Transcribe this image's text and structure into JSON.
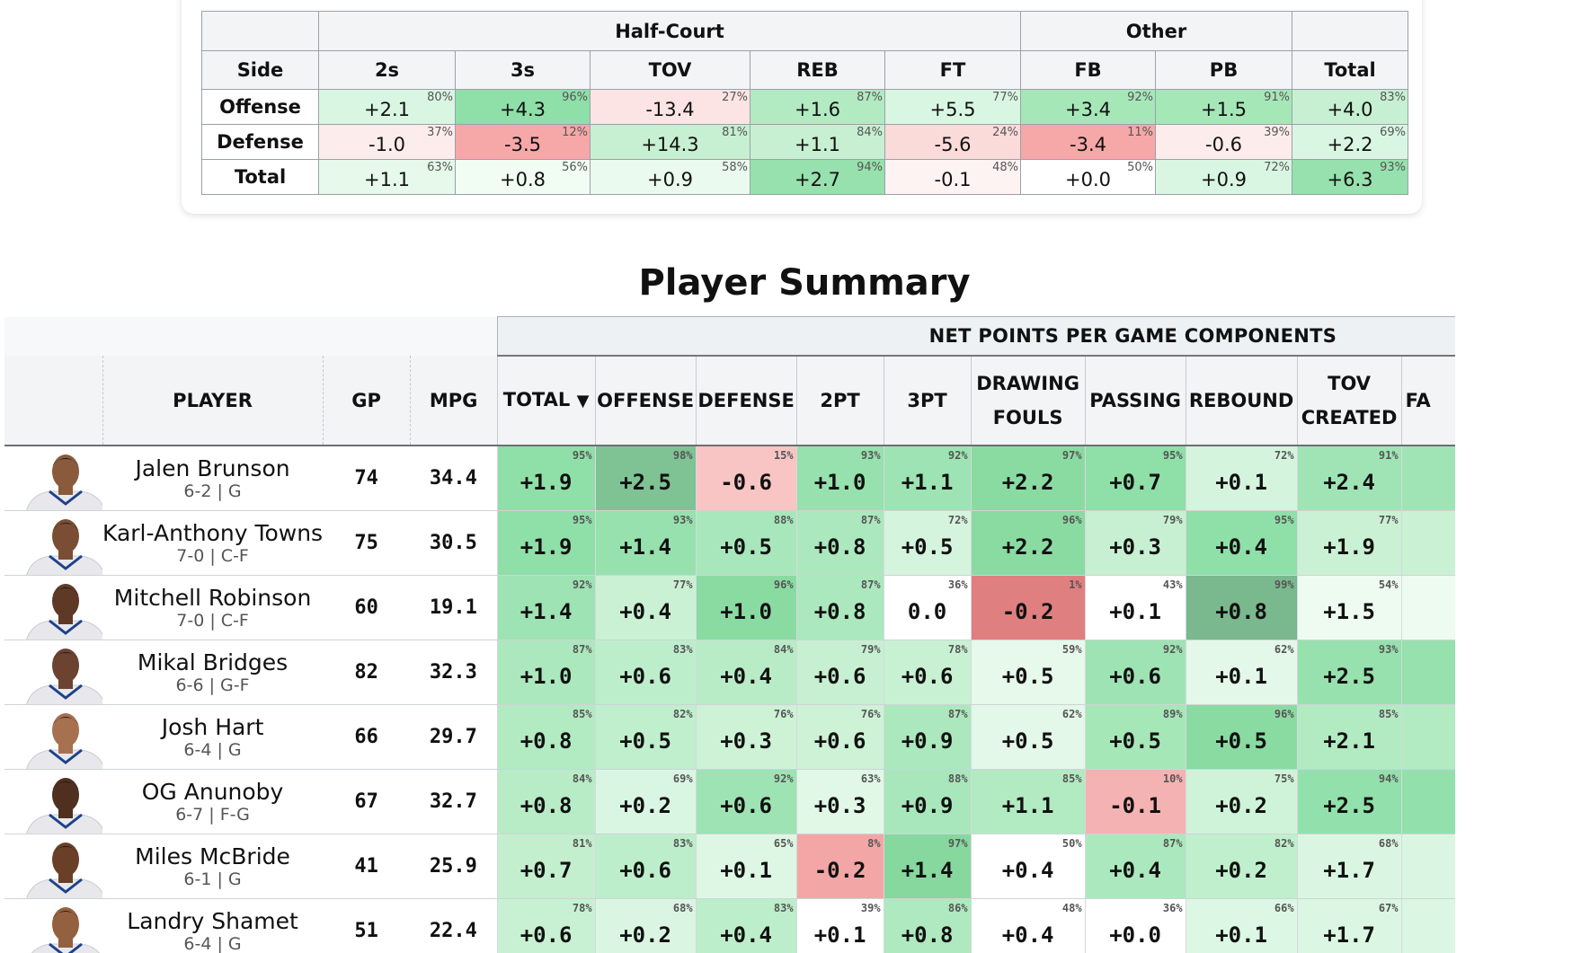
{
  "team_components": {
    "group_headers": [
      "Half-Court",
      "Other"
    ],
    "columns": [
      "Side",
      "2s",
      "3s",
      "TOV",
      "REB",
      "FT",
      "FB",
      "PB",
      "Total"
    ],
    "rows": [
      {
        "side": "Offense",
        "cells": [
          {
            "v": "+2.1",
            "p": "80%",
            "c": "#d9f6e2"
          },
          {
            "v": "+4.3",
            "p": "96%",
            "c": "#8fdfa8"
          },
          {
            "v": "-13.4",
            "p": "27%",
            "c": "#fde4e4"
          },
          {
            "v": "+1.6",
            "p": "87%",
            "c": "#b2eac2"
          },
          {
            "v": "+5.5",
            "p": "77%",
            "c": "#d9f6e2"
          },
          {
            "v": "+3.4",
            "p": "92%",
            "c": "#a6e7b8"
          },
          {
            "v": "+1.5",
            "p": "91%",
            "c": "#a6e7b8"
          },
          {
            "v": "+4.0",
            "p": "83%",
            "c": "#c6f0d1"
          }
        ]
      },
      {
        "side": "Defense",
        "cells": [
          {
            "v": "-1.0",
            "p": "37%",
            "c": "#fdecec"
          },
          {
            "v": "-3.5",
            "p": "12%",
            "c": "#f6a8a8"
          },
          {
            "v": "+14.3",
            "p": "81%",
            "c": "#c6f0d1"
          },
          {
            "v": "+1.1",
            "p": "84%",
            "c": "#c6f0d1"
          },
          {
            "v": "-5.6",
            "p": "24%",
            "c": "#fbdada"
          },
          {
            "v": "-3.4",
            "p": "11%",
            "c": "#f6a8a8"
          },
          {
            "v": "-0.6",
            "p": "39%",
            "c": "#fdecec"
          },
          {
            "v": "+2.2",
            "p": "69%",
            "c": "#d9f6e2"
          }
        ]
      },
      {
        "side": "Total",
        "cells": [
          {
            "v": "+1.1",
            "p": "63%",
            "c": "#e6f9ea"
          },
          {
            "v": "+0.8",
            "p": "56%",
            "c": "#f1fcf3"
          },
          {
            "v": "+0.9",
            "p": "58%",
            "c": "#eafaee"
          },
          {
            "v": "+2.7",
            "p": "94%",
            "c": "#96e1ad"
          },
          {
            "v": "-0.1",
            "p": "48%",
            "c": "#fdf3f3"
          },
          {
            "v": "+0.0",
            "p": "50%",
            "c": "#ffffff"
          },
          {
            "v": "+0.9",
            "p": "72%",
            "c": "#d9f6e2"
          },
          {
            "v": "+6.3",
            "p": "93%",
            "c": "#96e1ad"
          }
        ]
      }
    ]
  },
  "player_summary": {
    "title": "Player Summary",
    "group_header": "NET POINTS PER GAME COMPONENTS",
    "columns": {
      "player": "PLAYER",
      "gp": "GP",
      "mpg": "MPG",
      "total": "TOTAL",
      "sort_icon": "▼",
      "offense": "OFFENSE",
      "defense": "DEFENSE",
      "twopt": "2PT",
      "threept": "3PT",
      "drawing_fouls_1": "DRAWING",
      "drawing_fouls_2": "FOULS",
      "passing": "PASSING",
      "rebound": "REBOUND",
      "tov_created_1": "TOV",
      "tov_created_2": "CREATED",
      "partial": "FA"
    },
    "players": [
      {
        "name": "Jalen Brunson",
        "meta": "6-2 | G",
        "gp": "74",
        "mpg": "34.4",
        "skin": "#8a5a3c",
        "stats": [
          {
            "v": "+1.9",
            "p": "95%",
            "c": "#8fdfa8"
          },
          {
            "v": "+2.5",
            "p": "98%",
            "c": "#7fc294"
          },
          {
            "v": "-0.6",
            "p": "15%",
            "c": "#f8c4c4"
          },
          {
            "v": "+1.0",
            "p": "93%",
            "c": "#96e1ad"
          },
          {
            "v": "+1.1",
            "p": "92%",
            "c": "#9ee3b3"
          },
          {
            "v": "+2.2",
            "p": "97%",
            "c": "#8adba2"
          },
          {
            "v": "+0.7",
            "p": "95%",
            "c": "#8fdfa8"
          },
          {
            "v": "+0.1",
            "p": "72%",
            "c": "#d5f4dd"
          },
          {
            "v": "+2.4",
            "p": "91%",
            "c": "#a0e4b5"
          }
        ]
      },
      {
        "name": "Karl-Anthony Towns",
        "meta": "7-0 | C-F",
        "gp": "75",
        "mpg": "30.5",
        "skin": "#7a4e35",
        "stats": [
          {
            "v": "+1.9",
            "p": "95%",
            "c": "#8fdfa8"
          },
          {
            "v": "+1.4",
            "p": "93%",
            "c": "#96e1ad"
          },
          {
            "v": "+0.5",
            "p": "88%",
            "c": "#a8e7bb"
          },
          {
            "v": "+0.8",
            "p": "87%",
            "c": "#abe8bd"
          },
          {
            "v": "+0.5",
            "p": "72%",
            "c": "#d5f4dd"
          },
          {
            "v": "+2.2",
            "p": "96%",
            "c": "#8adba2"
          },
          {
            "v": "+0.3",
            "p": "79%",
            "c": "#c6f0d1"
          },
          {
            "v": "+0.4",
            "p": "95%",
            "c": "#8fdfa8"
          },
          {
            "v": "+1.9",
            "p": "77%",
            "c": "#caf1d4"
          }
        ]
      },
      {
        "name": "Mitchell Robinson",
        "meta": "7-0 | C-F",
        "gp": "60",
        "mpg": "19.1",
        "skin": "#5e3a26",
        "stats": [
          {
            "v": "+1.4",
            "p": "92%",
            "c": "#9ee3b3"
          },
          {
            "v": "+0.4",
            "p": "77%",
            "c": "#caf1d4"
          },
          {
            "v": "+1.0",
            "p": "96%",
            "c": "#8adba2"
          },
          {
            "v": "+0.8",
            "p": "87%",
            "c": "#abe8bd"
          },
          {
            "v": "0.0",
            "p": "36%",
            "c": "#ffffff"
          },
          {
            "v": "-0.2",
            "p": "1%",
            "c": "#e07f7f"
          },
          {
            "v": "+0.1",
            "p": "43%",
            "c": "#ffffff"
          },
          {
            "v": "+0.8",
            "p": "99%",
            "c": "#7ab88d"
          },
          {
            "v": "+1.5",
            "p": "54%",
            "c": "#eefbf1"
          }
        ]
      },
      {
        "name": "Mikal Bridges",
        "meta": "6-6 | G-F",
        "gp": "82",
        "mpg": "32.3",
        "skin": "#6b4330",
        "stats": [
          {
            "v": "+1.0",
            "p": "87%",
            "c": "#abe8bd"
          },
          {
            "v": "+0.6",
            "p": "83%",
            "c": "#bdeecb"
          },
          {
            "v": "+0.4",
            "p": "84%",
            "c": "#b8ecc7"
          },
          {
            "v": "+0.6",
            "p": "79%",
            "c": "#c6f0d1"
          },
          {
            "v": "+0.6",
            "p": "78%",
            "c": "#c8f1d3"
          },
          {
            "v": "+0.5",
            "p": "59%",
            "c": "#e6f9ea"
          },
          {
            "v": "+0.6",
            "p": "92%",
            "c": "#9ee3b3"
          },
          {
            "v": "+0.1",
            "p": "62%",
            "c": "#e3f8e8"
          },
          {
            "v": "+2.5",
            "p": "93%",
            "c": "#96e1ad"
          }
        ]
      },
      {
        "name": "Josh Hart",
        "meta": "6-4 | G",
        "gp": "66",
        "mpg": "29.7",
        "skin": "#a7714f",
        "stats": [
          {
            "v": "+0.8",
            "p": "85%",
            "c": "#b2eac2"
          },
          {
            "v": "+0.5",
            "p": "82%",
            "c": "#c0efcd"
          },
          {
            "v": "+0.3",
            "p": "76%",
            "c": "#cdf2d6"
          },
          {
            "v": "+0.6",
            "p": "76%",
            "c": "#cdf2d6"
          },
          {
            "v": "+0.9",
            "p": "87%",
            "c": "#abe8bd"
          },
          {
            "v": "+0.5",
            "p": "62%",
            "c": "#e3f8e8"
          },
          {
            "v": "+0.5",
            "p": "89%",
            "c": "#a6e7b8"
          },
          {
            "v": "+0.5",
            "p": "96%",
            "c": "#8adba2"
          },
          {
            "v": "+2.1",
            "p": "85%",
            "c": "#b2eac2"
          }
        ]
      },
      {
        "name": "OG Anunoby",
        "meta": "6-7 | F-G",
        "gp": "67",
        "mpg": "32.7",
        "skin": "#4f3020",
        "stats": [
          {
            "v": "+0.8",
            "p": "84%",
            "c": "#b8ecc7"
          },
          {
            "v": "+0.2",
            "p": "69%",
            "c": "#d9f6e2"
          },
          {
            "v": "+0.6",
            "p": "92%",
            "c": "#9ee3b3"
          },
          {
            "v": "+0.3",
            "p": "63%",
            "c": "#e1f8e6"
          },
          {
            "v": "+0.9",
            "p": "88%",
            "c": "#a8e7bb"
          },
          {
            "v": "+1.1",
            "p": "85%",
            "c": "#b2eac2"
          },
          {
            "v": "-0.1",
            "p": "10%",
            "c": "#f5b2b2"
          },
          {
            "v": "+0.2",
            "p": "75%",
            "c": "#cef3d8"
          },
          {
            "v": "+2.5",
            "p": "94%",
            "c": "#92e0ab"
          }
        ]
      },
      {
        "name": "Miles McBride",
        "meta": "6-1 | G",
        "gp": "41",
        "mpg": "25.9",
        "skin": "#6a3f28",
        "stats": [
          {
            "v": "+0.7",
            "p": "81%",
            "c": "#c3efcf"
          },
          {
            "v": "+0.6",
            "p": "83%",
            "c": "#bdeecb"
          },
          {
            "v": "+0.1",
            "p": "65%",
            "c": "#ddf7e4"
          },
          {
            "v": "-0.2",
            "p": "8%",
            "c": "#f3a6a6"
          },
          {
            "v": "+1.4",
            "p": "97%",
            "c": "#86d89f"
          },
          {
            "v": "+0.4",
            "p": "50%",
            "c": "#ffffff"
          },
          {
            "v": "+0.4",
            "p": "87%",
            "c": "#abe8bd"
          },
          {
            "v": "+0.2",
            "p": "82%",
            "c": "#c0efcd"
          },
          {
            "v": "+1.7",
            "p": "68%",
            "c": "#daf6e2"
          }
        ]
      },
      {
        "name": "Landry Shamet",
        "meta": "6-4 | G",
        "gp": "51",
        "mpg": "22.4",
        "skin": "#93613f",
        "stats": [
          {
            "v": "+0.6",
            "p": "78%",
            "c": "#c8f1d3"
          },
          {
            "v": "+0.2",
            "p": "68%",
            "c": "#daf6e2"
          },
          {
            "v": "+0.4",
            "p": "83%",
            "c": "#bdeecb"
          },
          {
            "v": "+0.1",
            "p": "39%",
            "c": "#ffffff"
          },
          {
            "v": "+0.8",
            "p": "86%",
            "c": "#aee9bf"
          },
          {
            "v": "+0.4",
            "p": "48%",
            "c": "#ffffff"
          },
          {
            "v": "+0.0",
            "p": "36%",
            "c": "#ffffff"
          },
          {
            "v": "+0.1",
            "p": "66%",
            "c": "#dcf7e3"
          },
          {
            "v": "+1.7",
            "p": "67%",
            "c": "#dbf6e2"
          }
        ]
      }
    ]
  }
}
